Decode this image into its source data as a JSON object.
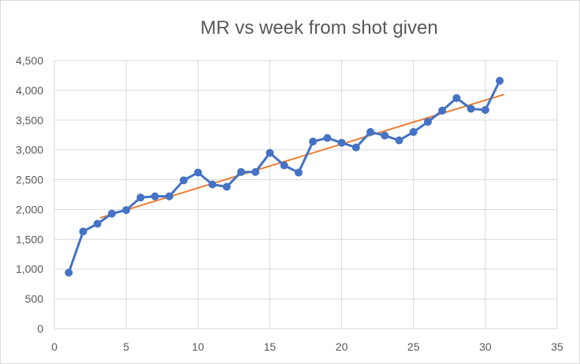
{
  "chart_data": {
    "type": "scatter",
    "title": "MR vs week from shot given",
    "xlabel": "",
    "ylabel": "",
    "xlim": [
      0,
      35
    ],
    "ylim": [
      0,
      4500
    ],
    "x_ticks": [
      "0",
      "5",
      "10",
      "15",
      "20",
      "25",
      "30",
      "35"
    ],
    "y_ticks": [
      "0",
      "500",
      "1,000",
      "1,500",
      "2,000",
      "2,500",
      "3,000",
      "3,500",
      "4,000",
      "4,500"
    ],
    "grid": true,
    "legend": "none",
    "series": [
      {
        "color": "#4472c4",
        "style": "line-with-markers",
        "x": [
          1,
          2,
          3,
          4,
          5,
          6,
          7,
          8,
          9,
          10,
          11,
          12,
          13,
          14,
          15,
          16,
          17,
          18,
          19,
          20,
          21,
          22,
          23,
          24,
          25,
          26,
          27,
          28,
          29,
          30,
          31
        ],
        "y": [
          940,
          1630,
          1760,
          1930,
          1990,
          2200,
          2220,
          2220,
          2490,
          2620,
          2420,
          2380,
          2630,
          2630,
          2950,
          2740,
          2620,
          3140,
          3200,
          3120,
          3040,
          3300,
          3240,
          3160,
          3300,
          3470,
          3660,
          3870,
          3690,
          3670,
          4160
        ]
      }
    ],
    "trendline": {
      "color": "#ed7d31",
      "x": [
        3.2,
        31.3
      ],
      "y": [
        1860,
        3930
      ]
    }
  }
}
